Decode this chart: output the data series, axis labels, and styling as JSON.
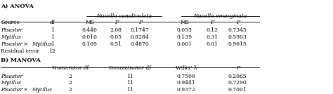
{
  "title_a": "A) ANOVA",
  "title_b": "B) MANOVA",
  "species1": "Nucella canaliculata",
  "species2": "Nucella emarginata",
  "anova_rows": [
    [
      "Pisaster",
      "1",
      "0.440",
      "2.08",
      "0.1747",
      "0.055",
      "0.12",
      "0.7345"
    ],
    [
      "Mytilus",
      "1",
      "0.010",
      "0.05",
      "0.8284",
      "0.139",
      "0.31",
      "0.5903"
    ],
    [
      "Pisaster × Mytilus",
      "1",
      "0.109",
      "0.51",
      "0.4870",
      "0.001",
      "0.01",
      "0.9615"
    ],
    [
      "Residual error",
      "12",
      "",
      "",
      "",
      "",
      "",
      ""
    ]
  ],
  "manova_rows": [
    [
      "Pisaster",
      "2",
      "11",
      "0.7506",
      "0.2065"
    ],
    [
      "Mytilus",
      "2",
      "11",
      "0.9441",
      "0.7290"
    ],
    [
      "Pisaster × Mytilus",
      "2",
      "11",
      "0.9372",
      "0.7001"
    ]
  ],
  "bg_color": "#ffffff",
  "text_color": "#000000"
}
